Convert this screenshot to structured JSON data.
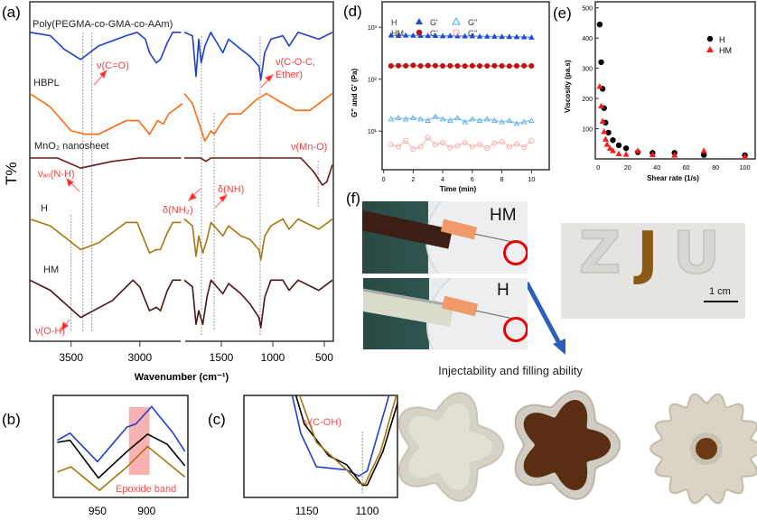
{
  "panel_labels": {
    "a": "(a)",
    "b": "(b)",
    "c": "(c)",
    "d": "(d)",
    "e": "(e)",
    "f": "(f)"
  },
  "colors": {
    "blue": "#1f3fcf",
    "orange": "#ff6a10",
    "maroon": "#6b1a16",
    "gold": "#a87510",
    "darkbrown": "#4a1414",
    "annot": "#ff3b3b",
    "h_gp": "#1a4fd8",
    "h_gpp": "#4aa8e8",
    "hm_gp": "#c01010",
    "hm_gpp": "#f3a3a3"
  },
  "chart_data": [
    {
      "id": "a",
      "type": "line",
      "xlabel": "Wavenumber (cm⁻¹)",
      "ylabel": "T%",
      "x_broken_axis": [
        [
          3800,
          2690
        ],
        [
          1860,
          412
        ]
      ],
      "xticks": [
        "3500",
        "3000",
        "1500",
        "1000",
        "500"
      ],
      "series": [
        {
          "name": "Poly(PEGMA-co-GMA-co-AAm)",
          "color": "blue",
          "points": [
            [
              3800,
              91
            ],
            [
              3650,
              90
            ],
            [
              3550,
              86
            ],
            [
              3430,
              83
            ],
            [
              3300,
              87
            ],
            [
              3100,
              90
            ],
            [
              3020,
              91
            ],
            [
              2960,
              89
            ],
            [
              2930,
              85
            ],
            [
              2880,
              82
            ],
            [
              2850,
              83
            ],
            [
              2800,
              88
            ],
            [
              2760,
              91
            ],
            [
              2700,
              91
            ],
            [
              1860,
              91
            ],
            [
              1780,
              90
            ],
            [
              1746,
              78
            ],
            [
              1720,
              89
            ],
            [
              1696,
              82
            ],
            [
              1660,
              87
            ],
            [
              1603,
              91
            ],
            [
              1485,
              85
            ],
            [
              1430,
              89
            ],
            [
              1310,
              86
            ],
            [
              1222,
              84
            ],
            [
              1134,
              81
            ],
            [
              1117,
              77
            ],
            [
              1078,
              85
            ],
            [
              1018,
              89
            ],
            [
              903,
              90
            ],
            [
              842,
              87
            ],
            [
              754,
              91
            ],
            [
              553,
              89
            ],
            [
              421,
              91
            ]
          ]
        },
        {
          "name": "HBPL",
          "color": "orange",
          "points": [
            [
              3800,
              73
            ],
            [
              3650,
              69
            ],
            [
              3500,
              62
            ],
            [
              3400,
              61
            ],
            [
              3300,
              61
            ],
            [
              3200,
              63
            ],
            [
              3100,
              65
            ],
            [
              3010,
              65
            ],
            [
              2930,
              61
            ],
            [
              2870,
              65
            ],
            [
              2830,
              64
            ],
            [
              2790,
              67
            ],
            [
              2690,
              70
            ],
            [
              1860,
              73
            ],
            [
              1780,
              70
            ],
            [
              1660,
              59
            ],
            [
              1600,
              62
            ],
            [
              1570,
              61
            ],
            [
              1485,
              65
            ],
            [
              1430,
              67
            ],
            [
              1310,
              67
            ],
            [
              1167,
              71
            ],
            [
              1062,
              73
            ],
            [
              956,
              71
            ],
            [
              780,
              68
            ],
            [
              640,
              68
            ],
            [
              421,
              73
            ]
          ]
        },
        {
          "name": "MnO₂ nanosheet",
          "color": "maroon",
          "points": [
            [
              3800,
              54
            ],
            [
              3600,
              54
            ],
            [
              3430,
              51
            ],
            [
              3200,
              53
            ],
            [
              3000,
              54
            ],
            [
              2700,
              54
            ],
            [
              1860,
              54
            ],
            [
              1700,
              54
            ],
            [
              1650,
              53
            ],
            [
              1600,
              54
            ],
            [
              1062,
              54
            ],
            [
              727,
              54
            ],
            [
              605,
              50
            ],
            [
              518,
              46
            ],
            [
              474,
              47
            ],
            [
              421,
              52
            ]
          ]
        },
        {
          "name": "H",
          "color": "gold",
          "points": [
            [
              3800,
              36
            ],
            [
              3650,
              34
            ],
            [
              3430,
              27
            ],
            [
              3300,
              29
            ],
            [
              3100,
              35
            ],
            [
              3020,
              35
            ],
            [
              2930,
              26
            ],
            [
              2880,
              27
            ],
            [
              2850,
              27
            ],
            [
              2800,
              32
            ],
            [
              2760,
              35
            ],
            [
              2700,
              35
            ],
            [
              1860,
              36
            ],
            [
              1780,
              34
            ],
            [
              1746,
              25
            ],
            [
              1720,
              31
            ],
            [
              1680,
              26
            ],
            [
              1640,
              30
            ],
            [
              1600,
              35
            ],
            [
              1485,
              31
            ],
            [
              1430,
              34
            ],
            [
              1310,
              31
            ],
            [
              1222,
              30
            ],
            [
              1134,
              27
            ],
            [
              1117,
              24
            ],
            [
              1078,
              31
            ],
            [
              1018,
              34
            ],
            [
              903,
              36
            ],
            [
              842,
              33
            ],
            [
              754,
              36
            ],
            [
              553,
              33
            ],
            [
              421,
              36
            ]
          ]
        },
        {
          "name": "HM",
          "color": "darkbrown",
          "points": [
            [
              3800,
              18
            ],
            [
              3650,
              15
            ],
            [
              3430,
              7
            ],
            [
              3200,
              12
            ],
            [
              3050,
              18
            ],
            [
              3000,
              16
            ],
            [
              2930,
              9
            ],
            [
              2880,
              10
            ],
            [
              2850,
              9
            ],
            [
              2800,
              15
            ],
            [
              2760,
              18
            ],
            [
              2700,
              18
            ],
            [
              1860,
              18
            ],
            [
              1780,
              16
            ],
            [
              1746,
              5
            ],
            [
              1720,
              9
            ],
            [
              1680,
              5
            ],
            [
              1640,
              13
            ],
            [
              1600,
              18
            ],
            [
              1485,
              14
            ],
            [
              1430,
              17
            ],
            [
              1310,
              14
            ],
            [
              1222,
              11
            ],
            [
              1134,
              7
            ],
            [
              1117,
              4
            ],
            [
              1078,
              13
            ],
            [
              1018,
              18
            ],
            [
              903,
              18
            ],
            [
              842,
              15
            ],
            [
              754,
              18
            ],
            [
              553,
              15
            ],
            [
              421,
              18
            ]
          ]
        }
      ],
      "reference_lines": [
        3500,
        3414,
        3349,
        1693,
        1570,
        1123,
        560
      ],
      "annotations": [
        "ν(C=O)",
        "ν(C-O-C,",
        "Ether)",
        "νₐₛ(N-H)",
        "δ(NH₂)",
        "δ(NH)",
        "ν(Mn-O)",
        "ν(O-H)"
      ]
    },
    {
      "id": "b",
      "type": "line",
      "xticks": [
        "950",
        "900"
      ],
      "xlim": [
        995,
        858
      ],
      "highlight": {
        "label": "Epoxide band",
        "range": [
          918,
          897
        ]
      },
      "series": [
        {
          "color": "blue",
          "points": [
            [
              991,
              56
            ],
            [
              978,
              63
            ],
            [
              950,
              35
            ],
            [
              920,
              69
            ],
            [
              911,
              72
            ],
            [
              895,
              89
            ],
            [
              873,
              63
            ],
            [
              861,
              45
            ]
          ]
        },
        {
          "color": "black",
          "points": [
            [
              991,
              54
            ],
            [
              978,
              56
            ],
            [
              949,
              19
            ],
            [
              920,
              45
            ],
            [
              899,
              62
            ],
            [
              879,
              52
            ],
            [
              861,
              31
            ]
          ]
        },
        {
          "color": "gold",
          "points": [
            [
              991,
              25
            ],
            [
              977,
              30
            ],
            [
              948,
              7
            ],
            [
              920,
              30
            ],
            [
              899,
              50
            ],
            [
              861,
              20
            ]
          ]
        }
      ]
    },
    {
      "id": "c",
      "type": "line",
      "xticks": [
        "1150",
        "1100"
      ],
      "xlim": [
        1202,
        1075
      ],
      "annotation": "ν(C-OH)",
      "reference_line": 1104,
      "series": [
        {
          "color": "blue",
          "points": [
            [
              1162,
              100
            ],
            [
              1155,
              63
            ],
            [
              1142,
              30
            ],
            [
              1117,
              27
            ],
            [
              1107,
              21
            ],
            [
              1100,
              26
            ],
            [
              1082,
              100
            ]
          ]
        },
        {
          "color": "black",
          "points": [
            [
              1159,
              100
            ],
            [
              1152,
              72
            ],
            [
              1132,
              41
            ],
            [
              1117,
              32
            ],
            [
              1104,
              12
            ],
            [
              1100,
              12
            ],
            [
              1087,
              45
            ],
            [
              1073,
              100
            ]
          ]
        },
        {
          "color": "gold",
          "points": [
            [
              1156,
              100
            ],
            [
              1142,
              54
            ],
            [
              1117,
              27
            ],
            [
              1107,
              14
            ],
            [
              1102,
              13
            ],
            [
              1089,
              45
            ],
            [
              1076,
              100
            ]
          ]
        }
      ]
    },
    {
      "id": "d",
      "type": "scatter",
      "xlabel": "Time (min)",
      "ylabel": "G\" and G' (Pa)",
      "yscale": "log",
      "ylim": [
        1.8,
        3100
      ],
      "xlim": [
        -0.1,
        11.2
      ],
      "xticks": [
        "0",
        "2",
        "4",
        "6",
        "8",
        "10"
      ],
      "yticks": [
        "10¹",
        "10²",
        "10³"
      ],
      "legend": {
        "rows": [
          "H",
          "HM"
        ],
        "cols": [
          "G'",
          "G\""
        ]
      },
      "x": [
        0.5,
        1,
        1.5,
        2,
        2.5,
        3,
        3.5,
        4,
        4.5,
        5,
        5.5,
        6,
        6.5,
        7,
        7.5,
        8,
        8.5,
        9,
        9.5,
        10
      ],
      "series": [
        {
          "name": "H G'",
          "marker": "triangle-filled",
          "color": "h_gp",
          "values": [
            700,
            690,
            700,
            695,
            690,
            685,
            690,
            680,
            685,
            680,
            675,
            680,
            670,
            670,
            665,
            660,
            660,
            655,
            650,
            640
          ]
        },
        {
          "name": "H G\"",
          "marker": "triangle-open",
          "color": "h_gpp",
          "values": [
            17,
            18,
            17,
            18,
            17,
            16,
            19,
            17,
            16,
            18,
            15,
            17,
            16,
            17,
            16,
            15,
            16,
            14,
            15,
            16
          ]
        },
        {
          "name": "HM G'",
          "marker": "circle-filled",
          "color": "hm_gp",
          "values": [
            180,
            182,
            181,
            185,
            180,
            183,
            182,
            180,
            181,
            180,
            179,
            181,
            180,
            180,
            181,
            180,
            179,
            180,
            181,
            180
          ]
        },
        {
          "name": "HM G\"",
          "marker": "circle-open",
          "color": "hm_gpp",
          "values": [
            5.5,
            5.0,
            6.5,
            4.5,
            5.0,
            7.5,
            5.5,
            6.0,
            4.8,
            5.2,
            6.0,
            5.0,
            5.5,
            4.7,
            5.8,
            6.2,
            5.0,
            5.6,
            4.9,
            6.5
          ]
        }
      ]
    },
    {
      "id": "e",
      "type": "scatter",
      "xlabel": "Shear rate (1/s)",
      "ylabel": "Viscosity (pa.s)",
      "xlim": [
        -2,
        107
      ],
      "ylim": [
        0,
        520
      ],
      "xticks": [
        "0",
        "20",
        "40",
        "60",
        "80",
        "100"
      ],
      "yticks": [
        "100",
        "200",
        "300",
        "400",
        "500"
      ],
      "series": [
        {
          "name": "H",
          "marker": "circle",
          "color": "#000000",
          "x": [
            1,
            2,
            3,
            4,
            5,
            7,
            10,
            14,
            19,
            27,
            37,
            52,
            72,
            100
          ],
          "values": [
            445,
            320,
            232,
            168,
            120,
            87,
            62,
            45,
            35,
            22,
            20,
            20,
            13,
            12
          ]
        },
        {
          "name": "HM",
          "marker": "triangle",
          "color": "#ff1a1a",
          "x": [
            1,
            2,
            3,
            4,
            5,
            6,
            8,
            10,
            14,
            19,
            27,
            37,
            52,
            72,
            100
          ],
          "values": [
            240,
            175,
            125,
            90,
            65,
            48,
            35,
            27,
            17,
            15,
            27,
            14,
            12,
            27,
            8
          ]
        }
      ]
    }
  ],
  "panel_f": {
    "photo_hm_label": "HM",
    "photo_h_label": "H",
    "scale_bar": "1 cm",
    "zju_letters": [
      "Z",
      "J",
      "U"
    ],
    "caption": "Injectability and filling ability"
  }
}
